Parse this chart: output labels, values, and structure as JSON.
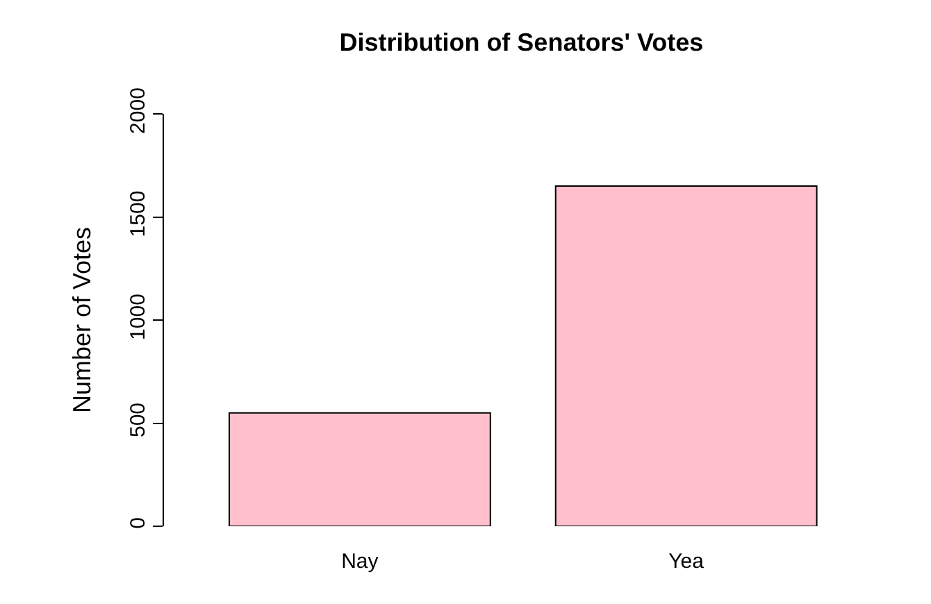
{
  "chart_data": {
    "type": "bar",
    "title": "Distribution of Senators' Votes",
    "ylabel": "Number of Votes",
    "categories": [
      "Nay",
      "Yea"
    ],
    "values": [
      550,
      1650
    ],
    "color": "#ffc0cb",
    "ylim": [
      0,
      2000
    ],
    "yticks": [
      0,
      500,
      1000,
      1500,
      2000
    ],
    "grid": false
  }
}
